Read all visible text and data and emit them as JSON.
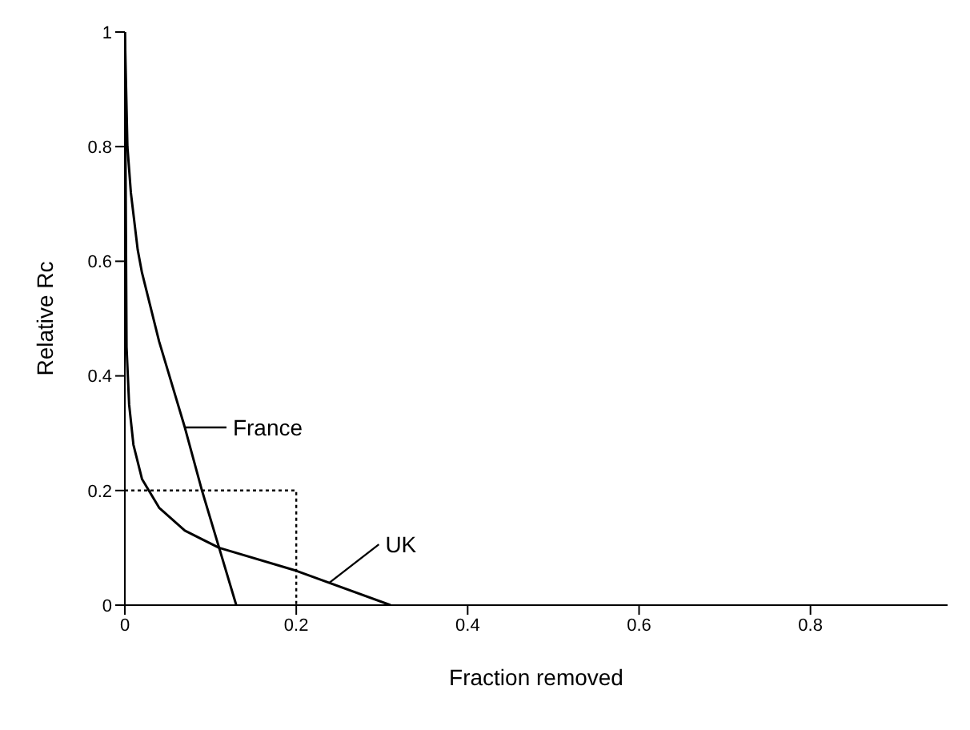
{
  "chart_data": {
    "type": "line",
    "xlabel": "Fraction removed",
    "ylabel": "Relative Rc",
    "xlim": [
      0,
      0.96
    ],
    "xticks": [
      0,
      0.2,
      0.4,
      0.6,
      0.8
    ],
    "ylim": [
      0,
      1
    ],
    "yticks": [
      0,
      0.2,
      0.4,
      0.6,
      0.8,
      1
    ],
    "grid": false,
    "marker": "none",
    "series": [
      {
        "name": "France",
        "color": "#000000",
        "x": [
          0,
          0.003,
          0.007,
          0.015,
          0.02,
          0.04,
          0.05,
          0.07,
          0.09,
          0.11,
          0.13
        ],
        "values": [
          1,
          0.8,
          0.72,
          0.62,
          0.58,
          0.46,
          0.41,
          0.31,
          0.2,
          0.1,
          0
        ]
      },
      {
        "name": "UK",
        "color": "#000000",
        "x": [
          0,
          0.002,
          0.005,
          0.01,
          0.02,
          0.04,
          0.07,
          0.11,
          0.2,
          0.31
        ],
        "values": [
          1,
          0.45,
          0.35,
          0.28,
          0.22,
          0.17,
          0.13,
          0.1,
          0.06,
          0
        ]
      },
      {
        "color": "#000000",
        "line_style": "dotted",
        "x": [
          0,
          0.2,
          0.2
        ],
        "values": [
          0.2,
          0.2,
          0
        ]
      }
    ]
  }
}
